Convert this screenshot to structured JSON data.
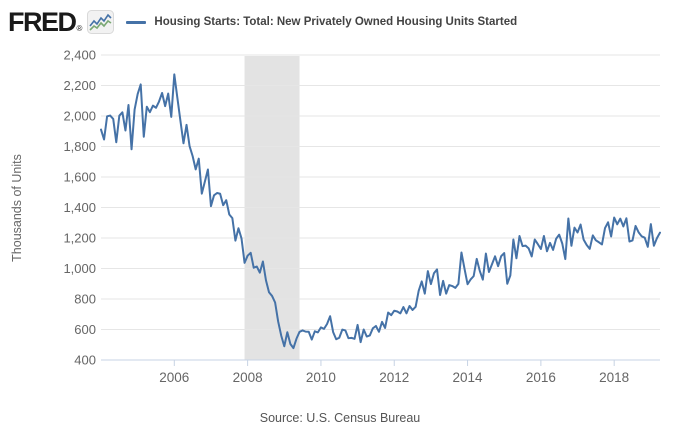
{
  "header": {
    "logo_text": "FRED",
    "logo_registered": "®"
  },
  "footer": {
    "source": "Source: U.S. Census Bureau"
  },
  "colors": {
    "line": "#4572a7",
    "recession_band": "#e3e3e3",
    "gridline": "#e6e6e6",
    "axis": "#c7d3e4",
    "tick_label": "#666666",
    "legend_text": "#434343",
    "logo_green": "#7aa874",
    "logo_icon_bg": "#f2f2f2",
    "logo_icon_border": "#d9d9d9"
  },
  "chart_data": {
    "type": "line",
    "title": "Housing Starts: Total: New Privately Owned Housing Units Started",
    "legend": [
      "Housing Starts: Total: New Privately Owned Housing Units Started"
    ],
    "legend_position": "top",
    "xlabel": "",
    "ylabel": "Thousands of Units",
    "ylim": [
      400,
      2400
    ],
    "ytick_step": 200,
    "xticks": [
      2006,
      2008,
      2010,
      2012,
      2014,
      2016,
      2018
    ],
    "grid": "horizontal",
    "frequency": "monthly",
    "x_start": "2004-01",
    "x_end": "2019-04",
    "recession_band": {
      "start": "2007-12",
      "end": "2009-06"
    },
    "values": [
      1911,
      1846,
      1998,
      2003,
      1981,
      1828,
      2002,
      2024,
      1905,
      2072,
      1782,
      2042,
      2144,
      2207,
      1864,
      2061,
      2025,
      2068,
      2054,
      2095,
      2151,
      2065,
      2147,
      1994,
      2273,
      2119,
      1969,
      1821,
      1942,
      1802,
      1737,
      1650,
      1720,
      1491,
      1570,
      1649,
      1409,
      1480,
      1495,
      1490,
      1415,
      1448,
      1354,
      1330,
      1183,
      1264,
      1197,
      1037,
      1084,
      1103,
      1005,
      1013,
      973,
      1046,
      923,
      844,
      820,
      777,
      652,
      560,
      490,
      582,
      505,
      478,
      540,
      585,
      594,
      586,
      585,
      534,
      588,
      581,
      614,
      604,
      636,
      687,
      583,
      536,
      546,
      599,
      594,
      543,
      545,
      539,
      630,
      517,
      600,
      554,
      561,
      608,
      623,
      585,
      650,
      610,
      711,
      694,
      723,
      718,
      706,
      747,
      706,
      754,
      728,
      749,
      854,
      915,
      835,
      983,
      898,
      969,
      994,
      826,
      919,
      835,
      891,
      885,
      873,
      899,
      1105,
      999,
      897,
      928,
      950,
      1063,
      984,
      927,
      1098,
      977,
      1028,
      1080,
      1015,
      1081,
      1101,
      900,
      954,
      1190,
      1067,
      1213,
      1147,
      1150,
      1132,
      1079,
      1190,
      1160,
      1128,
      1213,
      1113,
      1168,
      1122,
      1195,
      1222,
      1164,
      1062,
      1328,
      1149,
      1268,
      1236,
      1288,
      1189,
      1154,
      1129,
      1217,
      1185,
      1172,
      1158,
      1265,
      1303,
      1210,
      1334,
      1290,
      1327,
      1276,
      1329,
      1177,
      1184,
      1279,
      1237,
      1211,
      1202,
      1142,
      1291,
      1149,
      1199,
      1235
    ]
  }
}
